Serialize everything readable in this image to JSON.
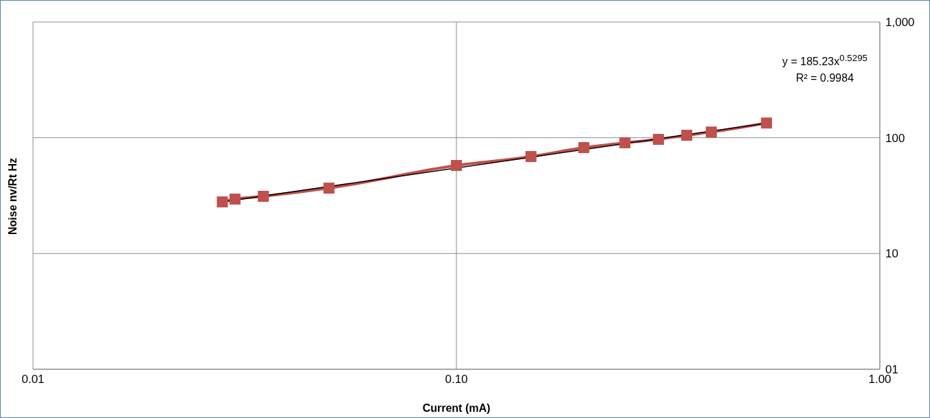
{
  "chart_data": {
    "type": "line",
    "xlabel": "Current (mA)",
    "ylabel": "Noise nv/Rt Hz",
    "annotations": [
      "y = 185.23x$^{0.5295}$",
      "R² = 0.9984"
    ],
    "log": "xy",
    "grid": true,
    "xlim": [
      0.01,
      1
    ],
    "xticks": [
      0.01,
      {
        "value": 0.1,
        "label": "0.10"
      },
      {
        "value": 1,
        "label": "1.00"
      }
    ],
    "ylim": [
      1,
      1000
    ],
    "yticks": [
      {
        "value": 1,
        "label": "01"
      },
      10,
      100,
      {
        "value": 1000,
        "label": "1,000"
      }
    ],
    "series": [
      {
        "type": "line",
        "color": "#c0504d",
        "marker": "square",
        "x": [
          0.028,
          0.03,
          0.035,
          0.05,
          0.1,
          0.15,
          0.2,
          0.25,
          0.3,
          0.35,
          0.4,
          0.54
        ],
        "values": [
          27.9,
          29.5,
          31.2,
          36.7,
          57.6,
          68.8,
          82.2,
          90.4,
          96.8,
          105,
          112,
          134
        ]
      },
      {
        "type": "line",
        "color": "#000000",
        "marker": "none",
        "x": [
          0.028,
          0.54
        ],
        "values": [
          27.9,
          133.7
        ]
      }
    ]
  }
}
